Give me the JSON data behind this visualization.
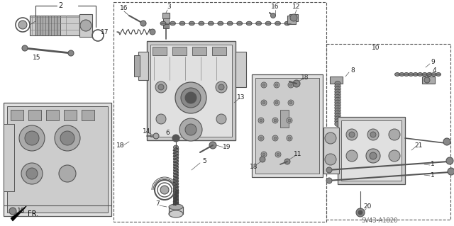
{
  "diagram_code": "SV43-A1820",
  "bg": "#ffffff",
  "lc": "#404040",
  "fig_w": 6.4,
  "fig_h": 3.19,
  "dpi": 100
}
